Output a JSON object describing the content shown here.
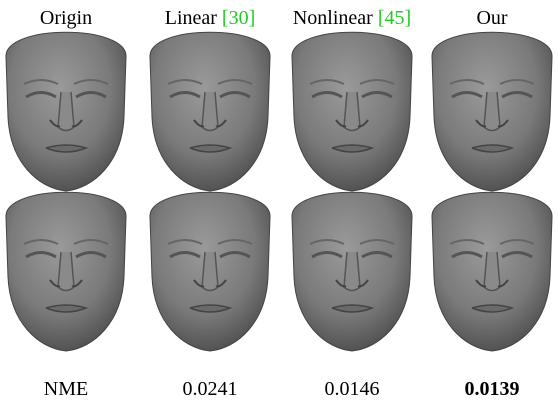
{
  "figure": {
    "columns": [
      {
        "name": "Origin"
      },
      {
        "name": "Linear",
        "citation": "[30]"
      },
      {
        "name": "Nonlinear",
        "citation": "[45]"
      },
      {
        "name": "Our"
      }
    ],
    "metric": {
      "label": "NME",
      "values": [
        0.0241,
        0.0146,
        0.0139
      ],
      "best_index": 2
    }
  }
}
